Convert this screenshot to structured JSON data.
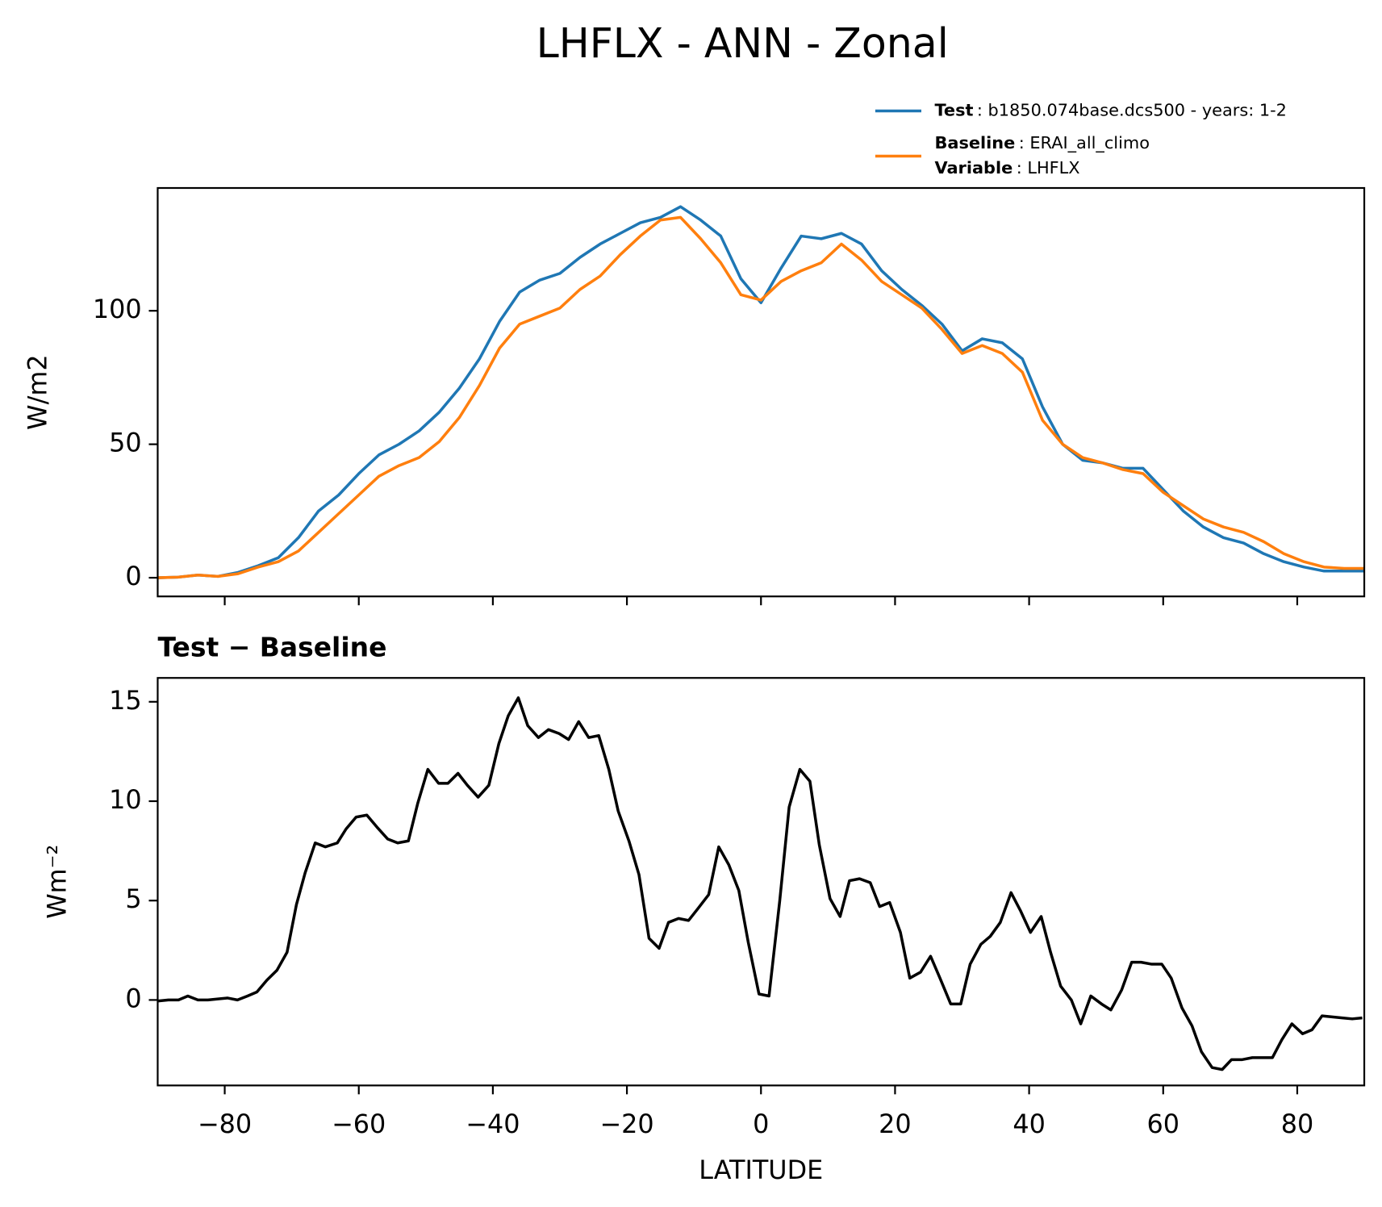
{
  "title": "LHFLX - ANN - Zonal",
  "chart_data": [
    {
      "type": "line",
      "ylabel": "W/m2",
      "x": [
        -90,
        -87,
        -84,
        -81,
        -78,
        -75,
        -72,
        -69,
        -66,
        -63,
        -60,
        -57,
        -54,
        -51,
        -48,
        -45,
        -42,
        -39,
        -36,
        -33,
        -30,
        -27,
        -24,
        -21,
        -18,
        -15,
        -12,
        -9,
        -6,
        -3,
        0,
        3,
        6,
        9,
        12,
        15,
        18,
        21,
        24,
        27,
        30,
        33,
        36,
        39,
        42,
        45,
        48,
        51,
        54,
        57,
        60,
        63,
        66,
        69,
        72,
        75,
        78,
        81,
        84,
        87,
        90
      ],
      "series": [
        {
          "name": "Test",
          "label": ": b1850.074base.dcs500 - years: 1-2",
          "color": "#1f77b4",
          "values": [
            0,
            0.2,
            1,
            0.5,
            2,
            4.5,
            7.5,
            15,
            25,
            31,
            39,
            46,
            50,
            55,
            62,
            71,
            82,
            96,
            107,
            111.5,
            114,
            120,
            125,
            129,
            133,
            135,
            139,
            134,
            128,
            112,
            103,
            116,
            128,
            127,
            129,
            125,
            115,
            108,
            102,
            95,
            85,
            89.5,
            88,
            82,
            64,
            50,
            44,
            43,
            41,
            41,
            33,
            25,
            19,
            15,
            13,
            9,
            6,
            4,
            2.5,
            2.5,
            2.5
          ]
        },
        {
          "name": "Baseline",
          "label": ": ERAI_all_climo",
          "color": "#ff7f0e",
          "values": [
            0,
            0.2,
            1,
            0.5,
            1.5,
            4,
            6,
            10,
            17,
            24,
            31,
            38,
            42,
            45,
            51,
            60,
            72,
            86,
            95,
            98,
            101,
            108,
            113,
            121,
            128,
            134,
            135,
            127,
            118,
            106,
            104,
            111,
            115,
            118,
            125,
            119,
            111,
            106,
            101,
            93,
            84,
            87,
            84,
            77,
            59,
            50,
            45,
            43,
            40.5,
            39,
            32,
            27,
            22,
            19,
            17,
            13.5,
            9,
            6,
            4,
            3.5,
            3.5
          ]
        }
      ],
      "variable": {
        "name": "Variable",
        "label": ": LHFLX"
      },
      "xlim": [
        -90,
        90
      ],
      "xticks": [
        -80,
        -60,
        -40,
        -20,
        0,
        20,
        40,
        60,
        80
      ],
      "show_xticklabels": false,
      "ylim": [
        -7,
        146
      ],
      "yticks": [
        0,
        50,
        100
      ]
    },
    {
      "type": "line",
      "title": "Test − Baseline",
      "ylabel": "Wm⁻²",
      "xlabel": "LATITUDE",
      "x": [
        -89.9,
        -88.4,
        -86.9,
        -85.5,
        -84,
        -82.5,
        -81,
        -79.6,
        -78.1,
        -76.6,
        -75.2,
        -73.7,
        -72.2,
        -70.7,
        -69.3,
        -68,
        -66.5,
        -65,
        -63.2,
        -61.9,
        -60.4,
        -58.8,
        -57.3,
        -55.7,
        -54.2,
        -52.6,
        -51.2,
        -49.7,
        -48.1,
        -46.7,
        -45.2,
        -43.8,
        -42.2,
        -40.6,
        -39.1,
        -37.7,
        -36.2,
        -34.8,
        -33.2,
        -31.7,
        -30.1,
        -28.7,
        -27.2,
        -25.7,
        -24.2,
        -22.7,
        -21.3,
        -19.7,
        -18.2,
        -16.7,
        -15.2,
        -13.8,
        -12.3,
        -10.8,
        -9.4,
        -7.8,
        -6.3,
        -4.8,
        -3.3,
        -1.9,
        -0.3,
        1.2,
        2.8,
        4.2,
        5.8,
        7.3,
        8.7,
        10.3,
        11.8,
        13.2,
        14.7,
        16.3,
        17.7,
        19.2,
        20.8,
        22.2,
        23.8,
        25.3,
        26.7,
        28.3,
        29.8,
        31.2,
        32.8,
        34.2,
        35.7,
        37.3,
        38.7,
        40.2,
        41.8,
        43.2,
        44.7,
        46.3,
        47.7,
        49.2,
        50.8,
        52.2,
        53.8,
        55.3,
        56.7,
        58.3,
        59.8,
        61.2,
        62.8,
        64.3,
        65.7,
        67.3,
        68.8,
        70.2,
        71.8,
        73.3,
        74.7,
        76.3,
        77.7,
        79.2,
        80.8,
        82.2,
        83.7,
        85.2,
        86.7,
        88.2,
        89.7
      ],
      "series": [
        {
          "color": "#000000",
          "values": [
            -0.05,
            0,
            0,
            0.2,
            0,
            0,
            0.05,
            0.1,
            0,
            0.2,
            0.4,
            1.0,
            1.5,
            2.4,
            4.8,
            6.4,
            7.9,
            7.7,
            7.9,
            8.6,
            9.2,
            9.3,
            8.7,
            8.1,
            7.9,
            8.0,
            9.9,
            11.6,
            10.9,
            10.9,
            11.4,
            10.8,
            10.2,
            10.8,
            12.9,
            14.3,
            15.2,
            13.8,
            13.2,
            13.6,
            13.4,
            13.1,
            14.0,
            13.2,
            13.3,
            11.6,
            9.5,
            8.0,
            6.3,
            3.1,
            2.6,
            3.9,
            4.1,
            4.0,
            4.6,
            5.3,
            7.7,
            6.8,
            5.5,
            2.9,
            0.3,
            0.2,
            5.0,
            9.7,
            11.6,
            11.0,
            7.8,
            5.1,
            4.2,
            6.0,
            6.1,
            5.9,
            4.7,
            4.9,
            3.4,
            1.1,
            1.4,
            2.2,
            1.1,
            -0.2,
            -0.2,
            1.8,
            2.8,
            3.2,
            3.9,
            5.4,
            4.5,
            3.4,
            4.2,
            2.4,
            0.7,
            0.0,
            -1.2,
            0.2,
            -0.2,
            -0.5,
            0.5,
            1.9,
            1.9,
            1.8,
            1.8,
            1.1,
            -0.4,
            -1.3,
            -2.6,
            -3.4,
            -3.5,
            -3.0,
            -3.0,
            -2.9,
            -2.9,
            -2.9,
            -2.0,
            -1.2,
            -1.7,
            -1.5,
            -0.8,
            -0.85,
            -0.9,
            -0.95,
            -0.9
          ]
        }
      ],
      "xlim": [
        -90,
        90
      ],
      "xticks": [
        {
          "value": -80,
          "label": "−80"
        },
        {
          "value": -60,
          "label": "−60"
        },
        {
          "value": -40,
          "label": "−40"
        },
        {
          "value": -20,
          "label": "−20"
        },
        0,
        20,
        40,
        60,
        80
      ],
      "show_xticklabels": true,
      "ylim": [
        -4.3,
        16.2
      ],
      "yticks": [
        0,
        5,
        10,
        15
      ]
    }
  ]
}
